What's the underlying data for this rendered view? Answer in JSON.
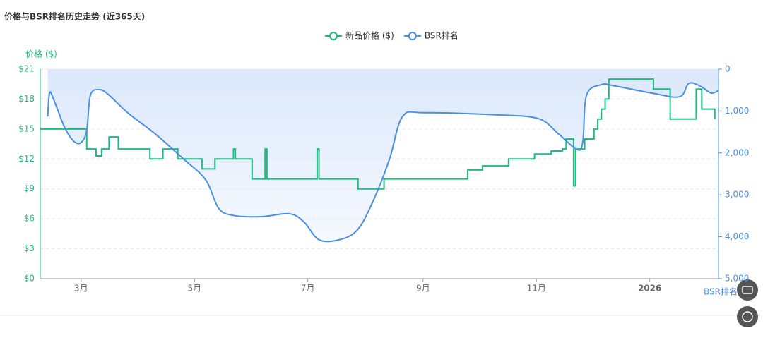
{
  "chart_data": {
    "type": "line",
    "title": "价格与BSR排名历史走势 (近365天)",
    "y_axis_label": "价格 ($)",
    "y2_axis_label": "BSR排名",
    "xlim": [
      0,
      365
    ],
    "xticks": [
      {
        "value": 22,
        "label": "3月"
      },
      {
        "value": 83,
        "label": "5月"
      },
      {
        "value": 144,
        "label": "7月"
      },
      {
        "value": 206,
        "label": "9月"
      },
      {
        "value": 267,
        "label": "11月"
      },
      {
        "value": 328,
        "label": "2026"
      }
    ],
    "ylim": [
      0,
      21
    ],
    "yticks": [
      {
        "value": 0,
        "label": "$0"
      },
      {
        "value": 3,
        "label": "$3"
      },
      {
        "value": 6,
        "label": "$6"
      },
      {
        "value": 9,
        "label": "$9"
      },
      {
        "value": 12,
        "label": "$12"
      },
      {
        "value": 15,
        "label": "$15"
      },
      {
        "value": 18,
        "label": "$18"
      },
      {
        "value": 21,
        "label": "$21"
      }
    ],
    "y2lim": [
      0,
      5000
    ],
    "y2_inverted": true,
    "y2ticks": [
      0,
      {
        "value": 1000,
        "label": "1,000"
      },
      {
        "value": 2000,
        "label": "2,000"
      },
      {
        "value": 3000,
        "label": "3,000"
      },
      {
        "value": 4000,
        "label": "4,000"
      },
      {
        "value": 5000,
        "label": "5,000"
      }
    ],
    "grid": true,
    "series": [
      {
        "name": "新品价格 ($)",
        "color": "#1dbb82",
        "step": true,
        "x": [
          0,
          25,
          30,
          33,
          37,
          42,
          59,
          66,
          74,
          87,
          94,
          104,
          105,
          114,
          121,
          122,
          149,
          150,
          171,
          185,
          230,
          238,
          252,
          266,
          275,
          281,
          283,
          287,
          288,
          293,
          298,
          300,
          302,
          304,
          306,
          330,
          339,
          353,
          356,
          363
        ],
        "values": [
          15,
          13,
          12.3,
          13,
          14.2,
          13,
          12,
          13,
          12,
          11,
          12,
          13,
          12,
          10,
          13,
          10,
          13,
          10,
          9,
          10,
          10.9,
          11.3,
          12,
          12.5,
          12.8,
          13,
          14,
          9.3,
          13,
          14,
          15,
          16,
          17,
          18,
          20,
          19,
          16,
          19,
          17,
          16
        ]
      },
      {
        "name": "BSR排名",
        "color": "#4a8fe0",
        "axis": "y2",
        "area": true,
        "x": [
          4,
          5,
          7,
          13,
          18,
          22,
          25,
          27,
          32,
          37,
          47,
          62,
          77,
          89,
          96,
          104,
          119,
          134,
          142,
          150,
          161,
          171,
          180,
          188,
          195,
          207,
          245,
          268,
          279,
          289,
          292,
          294,
          302,
          309,
          329,
          344,
          349,
          355,
          361,
          365
        ],
        "values": [
          1130,
          570,
          700,
          1380,
          1720,
          1750,
          1460,
          620,
          490,
          620,
          1040,
          1550,
          2140,
          2640,
          3320,
          3490,
          3520,
          3450,
          3650,
          4070,
          4070,
          3820,
          3060,
          2140,
          1130,
          1040,
          1090,
          1180,
          1550,
          1920,
          1720,
          620,
          370,
          400,
          570,
          660,
          340,
          400,
          570,
          510
        ]
      }
    ]
  }
}
